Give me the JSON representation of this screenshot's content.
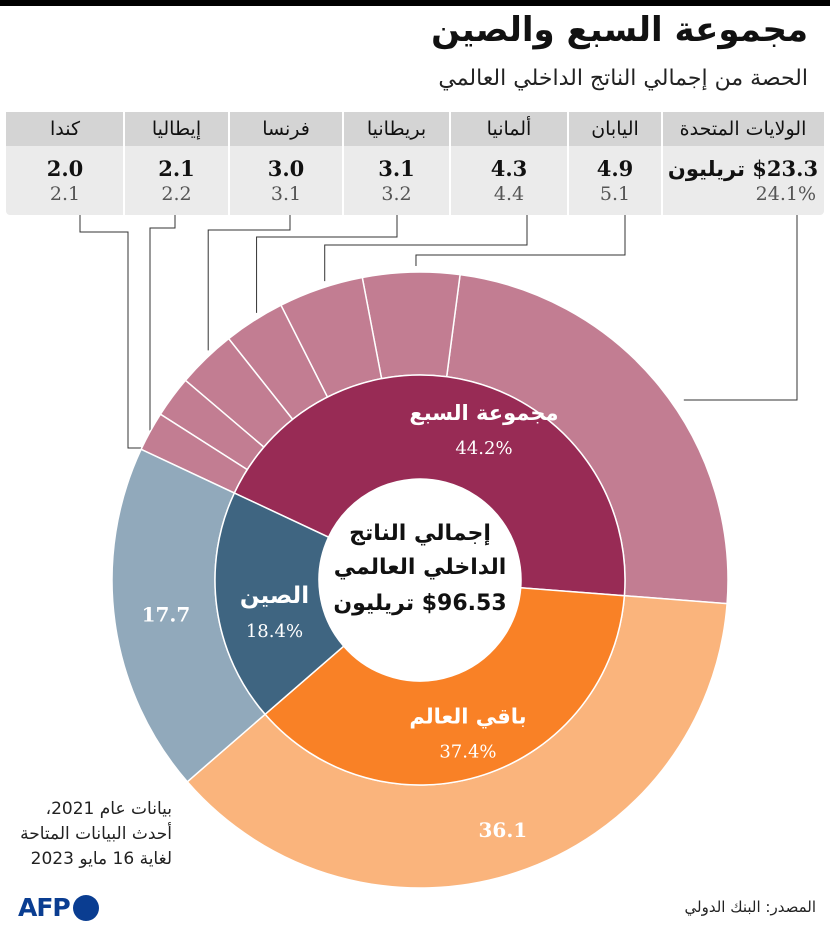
{
  "title": "مجموعة السبع والصين",
  "subtitle": "الحصة من إجمالي الناتج الداخلي العالمي",
  "colors": {
    "g7_inner": "#982b55",
    "g7_outer": "#c27d92",
    "china_inner": "#3f6581",
    "china_outer": "#91a9bb",
    "rest_inner": "#f98126",
    "rest_outer": "#fab47c",
    "header_bg": "#d4d4d4",
    "table_bg": "#ebebeb",
    "afp": "#0a3d91"
  },
  "chart_data": {
    "type": "sunburst",
    "total": {
      "lines": [
        "إجمالي الناتج",
        "الداخلي العالمي",
        "$96.53  تريليون"
      ],
      "value": 96.53,
      "unit": "تريليون"
    },
    "inner": [
      {
        "name": "مجموعة السبع",
        "pct": 44.2,
        "pct_label": "44.2%"
      },
      {
        "name": "باقي العالم",
        "pct": 37.4,
        "pct_label": "37.4%"
      },
      {
        "name": "الصين",
        "pct": 18.4,
        "pct_label": "18.4%"
      }
    ],
    "outer": [
      {
        "name": "الولايات المتحدة",
        "group": "مجموعة السبع",
        "value": 23.3,
        "value_label": "23.3",
        "pct": 24.1,
        "pct_label": "24.1%"
      },
      {
        "name": "اليابان",
        "group": "مجموعة السبع",
        "value": 4.9,
        "value_label": "4.9",
        "pct": 5.1,
        "pct_label": "5.1"
      },
      {
        "name": "ألمانيا",
        "group": "مجموعة السبع",
        "value": 4.3,
        "value_label": "4.3",
        "pct": 4.4,
        "pct_label": "4.4"
      },
      {
        "name": "بريطانيا",
        "group": "مجموعة السبع",
        "value": 3.1,
        "value_label": "3.1",
        "pct": 3.2,
        "pct_label": "3.2"
      },
      {
        "name": "فرنسا",
        "group": "مجموعة السبع",
        "value": 3.0,
        "value_label": "3.0",
        "pct": 3.1,
        "pct_label": "3.1"
      },
      {
        "name": "إيطاليا",
        "group": "مجموعة السبع",
        "value": 2.1,
        "value_label": "2.1",
        "pct": 2.2,
        "pct_label": "2.2"
      },
      {
        "name": "كندا",
        "group": "مجموعة السبع",
        "value": 2.0,
        "value_label": "2.0",
        "pct": 2.1,
        "pct_label": "2.1"
      },
      {
        "name": "باقي العالم",
        "group": "باقي العالم",
        "value": 36.1,
        "value_label": "36.1"
      },
      {
        "name": "الصين",
        "group": "الصين",
        "value": 17.7,
        "value_label": "17.7"
      }
    ],
    "us_value_unit": "تريليون",
    "us_value_prefix": "$"
  },
  "note": [
    "بيانات عام 2021،",
    "أحدث البيانات المتاحة",
    "لغاية 16 مايو 2023"
  ],
  "source": "المصدر: البنك الدولي",
  "logo_text": "AFP"
}
